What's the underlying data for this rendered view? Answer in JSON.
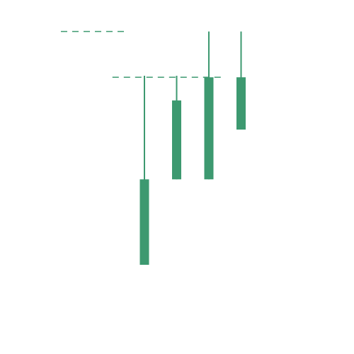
{
  "chart_data": {
    "type": "candlestick",
    "title": "",
    "xlabel": "",
    "ylabel": "",
    "grid": false,
    "legend": "none",
    "axes_visible": false,
    "ylim": [
      0,
      100
    ],
    "candles": [
      {
        "index": 0,
        "open": 50,
        "close": 67,
        "high": 87.6,
        "low": 50
      },
      {
        "index": 1,
        "open": 67,
        "close": 82.7,
        "high": 87.6,
        "low": 67
      },
      {
        "index": 2,
        "open": 67,
        "close": 87.3,
        "high": 96.4,
        "low": 67
      },
      {
        "index": 3,
        "open": 76.9,
        "close": 87.3,
        "high": 96.4,
        "low": 76.9
      }
    ],
    "reference_lines": [
      {
        "y": 96.4,
        "x_start": 0,
        "x_end": 2
      },
      {
        "y": 87.3,
        "x_start": 1.6,
        "x_end": 5
      }
    ],
    "colors": {
      "up": "#3d9970",
      "down": "#3d9970",
      "wick": "#3d9970",
      "reference_line": "#3d9970"
    }
  }
}
